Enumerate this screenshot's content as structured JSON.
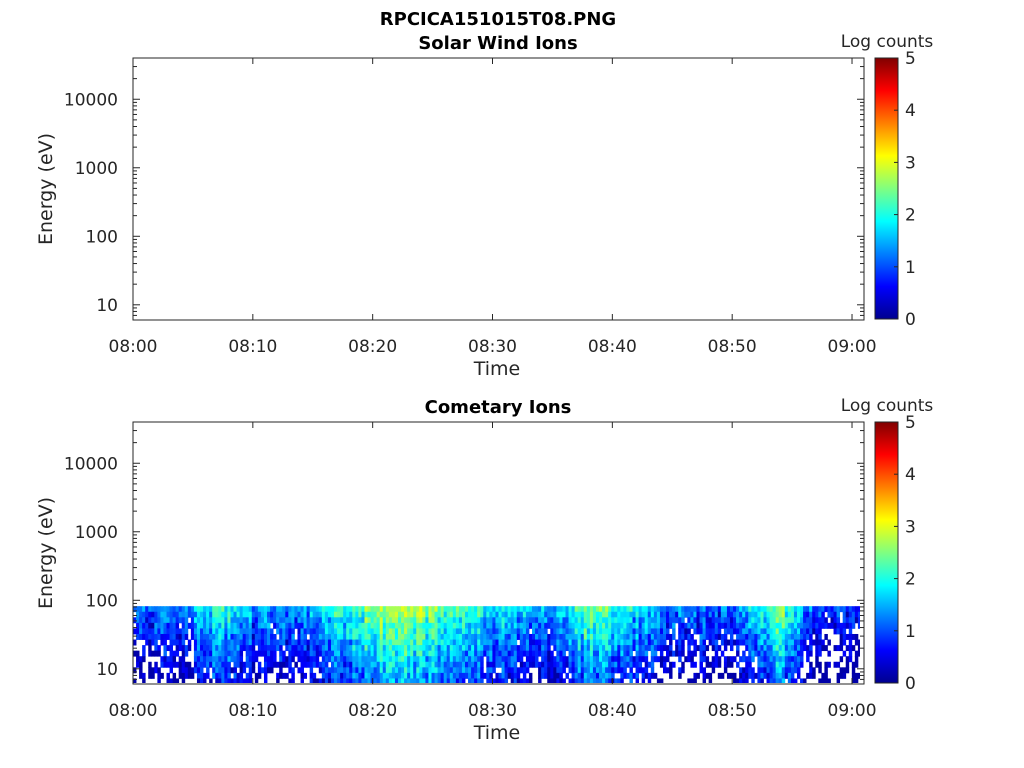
{
  "figure_title": "RPCICA151015T08.PNG",
  "chart_data": [
    {
      "type": "heatmap",
      "title": "Solar Wind Ions",
      "xlabel": "Time",
      "ylabel": "Energy (eV)",
      "x_ticks": [
        "08:00",
        "08:10",
        "08:20",
        "08:30",
        "08:40",
        "08:50",
        "09:00"
      ],
      "x_range": [
        "08:00",
        "09:01"
      ],
      "y_scale": "log",
      "y_ticks": [
        10,
        100,
        1000,
        10000
      ],
      "y_tick_labels": [
        "10",
        "100",
        "1000",
        "10000"
      ],
      "y_range": [
        6,
        40000
      ],
      "colorbar": {
        "label": "Log counts",
        "ticks": [
          "0",
          "1",
          "2",
          "3",
          "4",
          "5"
        ],
        "range": [
          0,
          5
        ],
        "colormap": "jet"
      },
      "data": "none"
    },
    {
      "type": "heatmap",
      "title": "Cometary Ions",
      "xlabel": "Time",
      "ylabel": "Energy (eV)",
      "x_ticks": [
        "08:00",
        "08:10",
        "08:20",
        "08:30",
        "08:40",
        "08:50",
        "09:00"
      ],
      "x_range": [
        "08:00",
        "09:01"
      ],
      "y_scale": "log",
      "y_ticks": [
        10,
        100,
        1000,
        10000
      ],
      "y_tick_labels": [
        "10",
        "100",
        "1000",
        "10000"
      ],
      "y_range": [
        6,
        40000
      ],
      "colorbar": {
        "label": "Log counts",
        "ticks": [
          "0",
          "1",
          "2",
          "3",
          "4",
          "5"
        ],
        "range": [
          0,
          5
        ],
        "colormap": "jet"
      },
      "energy_range": [
        6,
        82
      ],
      "time_activity": [
        {
          "time": "08:00",
          "level": 1.2
        },
        {
          "time": "08:05",
          "level": 1.5
        },
        {
          "time": "08:07",
          "level": 2.3
        },
        {
          "time": "08:10",
          "level": 1.5
        },
        {
          "time": "08:15",
          "level": 1.6
        },
        {
          "time": "08:17",
          "level": 2.2
        },
        {
          "time": "08:20",
          "level": 2.6
        },
        {
          "time": "08:22",
          "level": 2.9
        },
        {
          "time": "08:25",
          "level": 2.6
        },
        {
          "time": "08:30",
          "level": 2.0
        },
        {
          "time": "08:35",
          "level": 1.6
        },
        {
          "time": "08:38",
          "level": 2.6
        },
        {
          "time": "08:40",
          "level": 2.2
        },
        {
          "time": "08:45",
          "level": 1.4
        },
        {
          "time": "08:50",
          "level": 1.2
        },
        {
          "time": "08:54",
          "level": 2.7
        },
        {
          "time": "08:57",
          "level": 1.1
        },
        {
          "time": "09:01",
          "level": 1.0
        }
      ]
    }
  ]
}
